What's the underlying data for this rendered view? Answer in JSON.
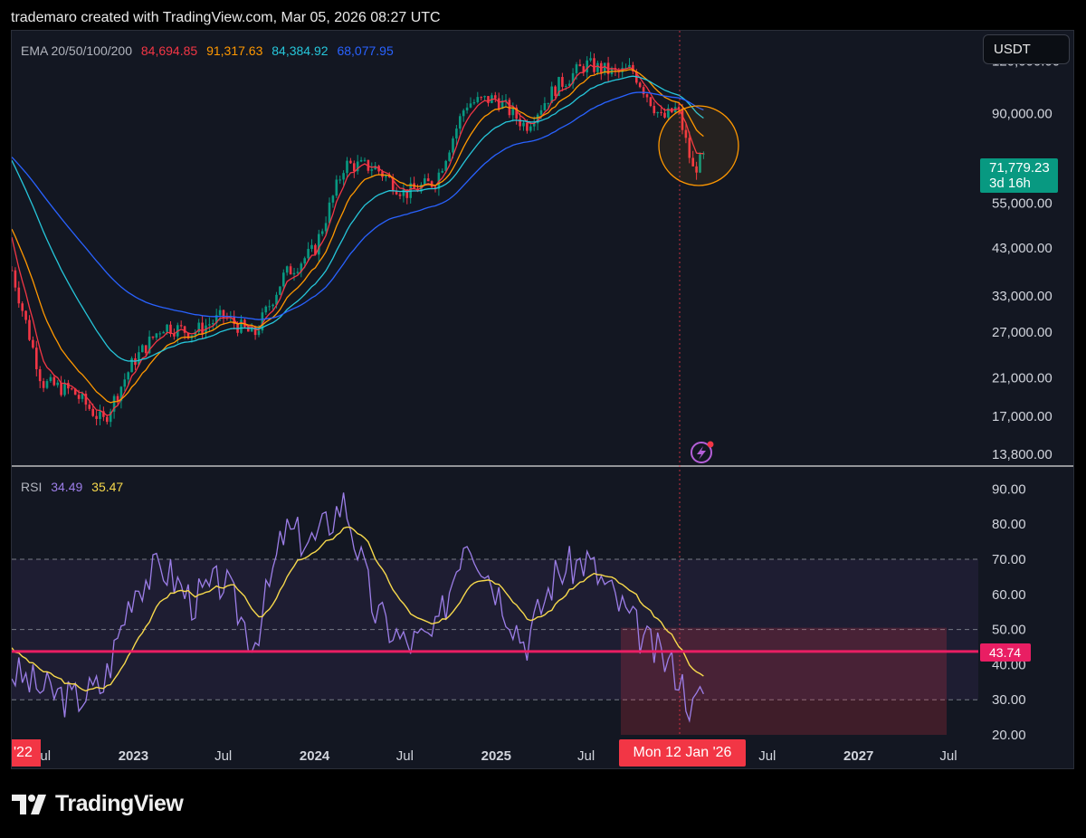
{
  "header": {
    "text": "trademaro created with TradingView.com, Mar 05, 2026 08:27 UTC"
  },
  "ema_legend": {
    "label": "EMA 20/50/100/200",
    "values": [
      {
        "text": "84,694.85",
        "color": "#f23645"
      },
      {
        "text": "91,317.63",
        "color": "#ff9800"
      },
      {
        "text": "84,384.92",
        "color": "#26c6da"
      },
      {
        "text": "68,077.95",
        "color": "#2962ff"
      }
    ]
  },
  "rsi_legend": {
    "label": "RSI",
    "values": [
      {
        "text": "34.49",
        "color": "#9c7ee8"
      },
      {
        "text": "35.47",
        "color": "#f7d94c"
      }
    ]
  },
  "currency": "USDT",
  "price_tag": {
    "price": "71,779.23",
    "countdown": "3d 16h"
  },
  "rsi_tag": "43.74",
  "date_tag": "Mon 12 Jan '26",
  "start_tag": "'22",
  "footer": {
    "brand": "TradingView"
  },
  "colors": {
    "up": "#089981",
    "down": "#f23645",
    "ema20": "#f23645",
    "ema50": "#ff9800",
    "ema100": "#26c6da",
    "ema200": "#2962ff",
    "rsi": "#9c7ee8",
    "rsi_ma": "#f7d94c",
    "level_line": "#e91e63"
  },
  "chart_data": [
    {
      "type": "candlestick",
      "scale": "log",
      "ylim": [
        13000,
        135000
      ],
      "y_ticks": [
        "120,000.00",
        "90,000.00",
        "71,779.23",
        "55,000.00",
        "43,000.00",
        "33,000.00",
        "27,000.00",
        "21,000.00",
        "17,000.00",
        "13,800.00"
      ],
      "y_tick_values": [
        120000,
        90000,
        55000,
        43000,
        33000,
        27000,
        21000,
        17000,
        13800
      ],
      "x_ticks": [
        "'22",
        "Jul",
        "2023",
        "Jul",
        "2024",
        "Jul",
        "2025",
        "Jul",
        "Jul",
        "2027",
        "Jul"
      ],
      "series_close_approx": {
        "dates": [
          "2022-05",
          "2022-07",
          "2022-09",
          "2022-11",
          "2023-01",
          "2023-03",
          "2023-05",
          "2023-07",
          "2023-09",
          "2023-11",
          "2024-01",
          "2024-03",
          "2024-05",
          "2024-07",
          "2024-09",
          "2024-11",
          "2025-01",
          "2025-03",
          "2025-05",
          "2025-07",
          "2025-09",
          "2025-10",
          "2025-12",
          "2026-01",
          "2026-02",
          "2026-03"
        ],
        "close": [
          38000,
          20500,
          19500,
          16500,
          23000,
          28000,
          27000,
          29500,
          26500,
          37000,
          42500,
          68000,
          67000,
          58000,
          62000,
          95000,
          98000,
          84000,
          104000,
          118000,
          112000,
          115000,
          87000,
          93000,
          66000,
          71779
        ]
      },
      "ema": [
        {
          "name": "EMA 20",
          "last": 84694.85
        },
        {
          "name": "EMA 50",
          "last": 91317.63
        },
        {
          "name": "EMA 100",
          "last": 84384.92
        },
        {
          "name": "EMA 200",
          "last": 68077.95
        }
      ],
      "annotation": "circle around early-2026 breakdown"
    },
    {
      "type": "line",
      "ylim": [
        20,
        95
      ],
      "y_ticks": [
        "90.00",
        "80.00",
        "70.00",
        "60.00",
        "50.00",
        "40.00",
        "30.00",
        "20.00"
      ],
      "levels": [
        70,
        50,
        30
      ],
      "horizontal_line": 43.74,
      "rsi": {
        "dates": [
          "2022-05",
          "2022-07",
          "2022-09",
          "2022-11",
          "2023-01",
          "2023-03",
          "2023-05",
          "2023-07",
          "2023-09",
          "2023-11",
          "2024-01",
          "2024-03",
          "2024-05",
          "2024-07",
          "2024-09",
          "2024-11",
          "2025-01",
          "2025-03",
          "2025-05",
          "2025-07",
          "2025-09",
          "2025-11",
          "2026-01",
          "2026-02",
          "2026-03"
        ],
        "values": [
          38,
          33,
          30,
          34,
          62,
          68,
          58,
          64,
          46,
          78,
          75,
          87,
          55,
          46,
          48,
          78,
          62,
          46,
          66,
          70,
          58,
          46,
          38,
          27,
          34.49
        ]
      },
      "rsi_ma_last": 35.47
    }
  ]
}
